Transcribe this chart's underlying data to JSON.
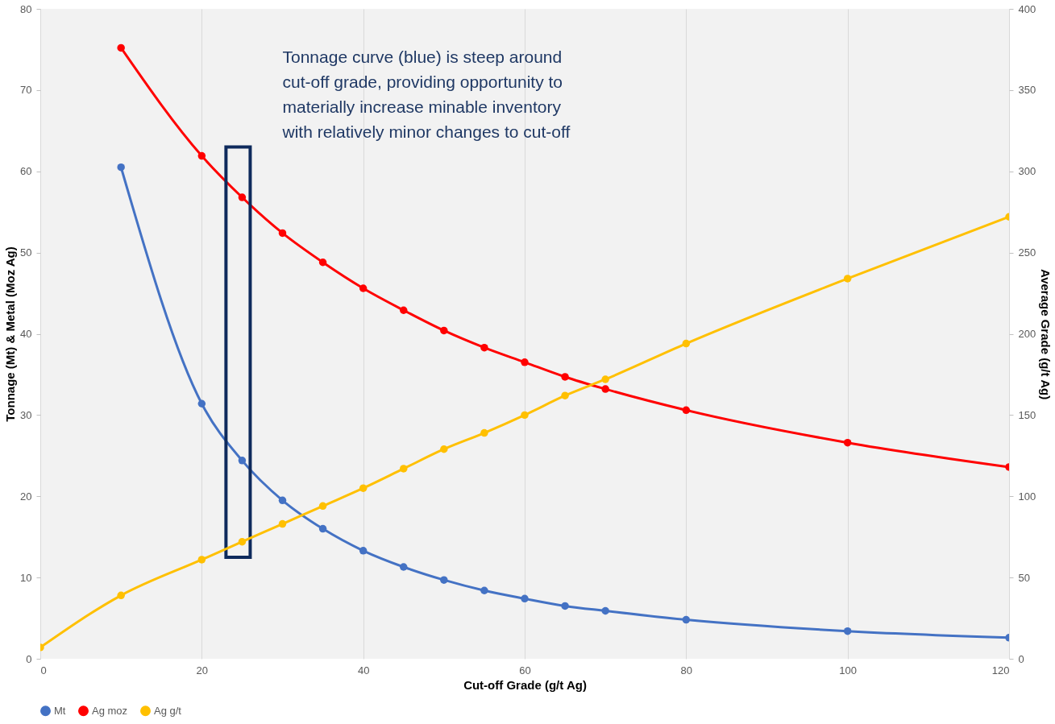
{
  "chart_data": {
    "type": "line",
    "xlabel": "Cut-off Grade (g/t Ag)",
    "ylabel": "Tonnage (Mt) & Metal (Moz Ag)",
    "y2label": "Average Grade (g/t Ag)",
    "x": [
      10,
      20,
      25,
      30,
      35,
      40,
      45,
      50,
      55,
      60,
      65,
      70,
      80,
      100,
      120
    ],
    "series": [
      {
        "name": "Mt",
        "color": "#4472c4",
        "values": [
          60.5,
          31.4,
          24.4,
          19.5,
          16.0,
          13.3,
          11.3,
          9.7,
          8.4,
          7.4,
          6.5,
          5.9,
          4.8,
          3.4,
          2.6
        ]
      },
      {
        "name": "Ag moz",
        "color": "#ff0000",
        "values": [
          75.2,
          61.9,
          56.8,
          52.4,
          48.8,
          45.6,
          42.9,
          40.4,
          38.3,
          36.5,
          34.7,
          33.2,
          30.6,
          26.6,
          23.6
        ]
      },
      {
        "name": "Ag g/t",
        "color": "#ffc000",
        "axis": "y2",
        "x": [
          0,
          10,
          20,
          25,
          30,
          35,
          40,
          45,
          50,
          55,
          60,
          65,
          70,
          80,
          100,
          120
        ],
        "values": [
          7,
          39,
          61,
          72,
          83,
          94,
          105,
          117,
          129,
          139,
          150,
          162,
          172,
          194,
          234,
          272
        ]
      }
    ],
    "xlim": [
      0,
      120
    ],
    "xticks": [
      0,
      20,
      40,
      60,
      80,
      100,
      120
    ],
    "ylim": [
      0,
      80
    ],
    "yticks": [
      0,
      10,
      20,
      30,
      40,
      50,
      60,
      70,
      80
    ],
    "y2lim": [
      0,
      400
    ],
    "y2ticks": [
      0,
      50,
      100,
      150,
      200,
      250,
      300,
      350,
      400
    ],
    "annotations": [
      "Tonnage curve (blue) is steep around cut-off grade, providing opportunity to materially increase minable inventory with relatively minor changes to cut-off"
    ],
    "grid": "x",
    "legend": "bottom",
    "marker": "circle",
    "line_style": "solid"
  }
}
